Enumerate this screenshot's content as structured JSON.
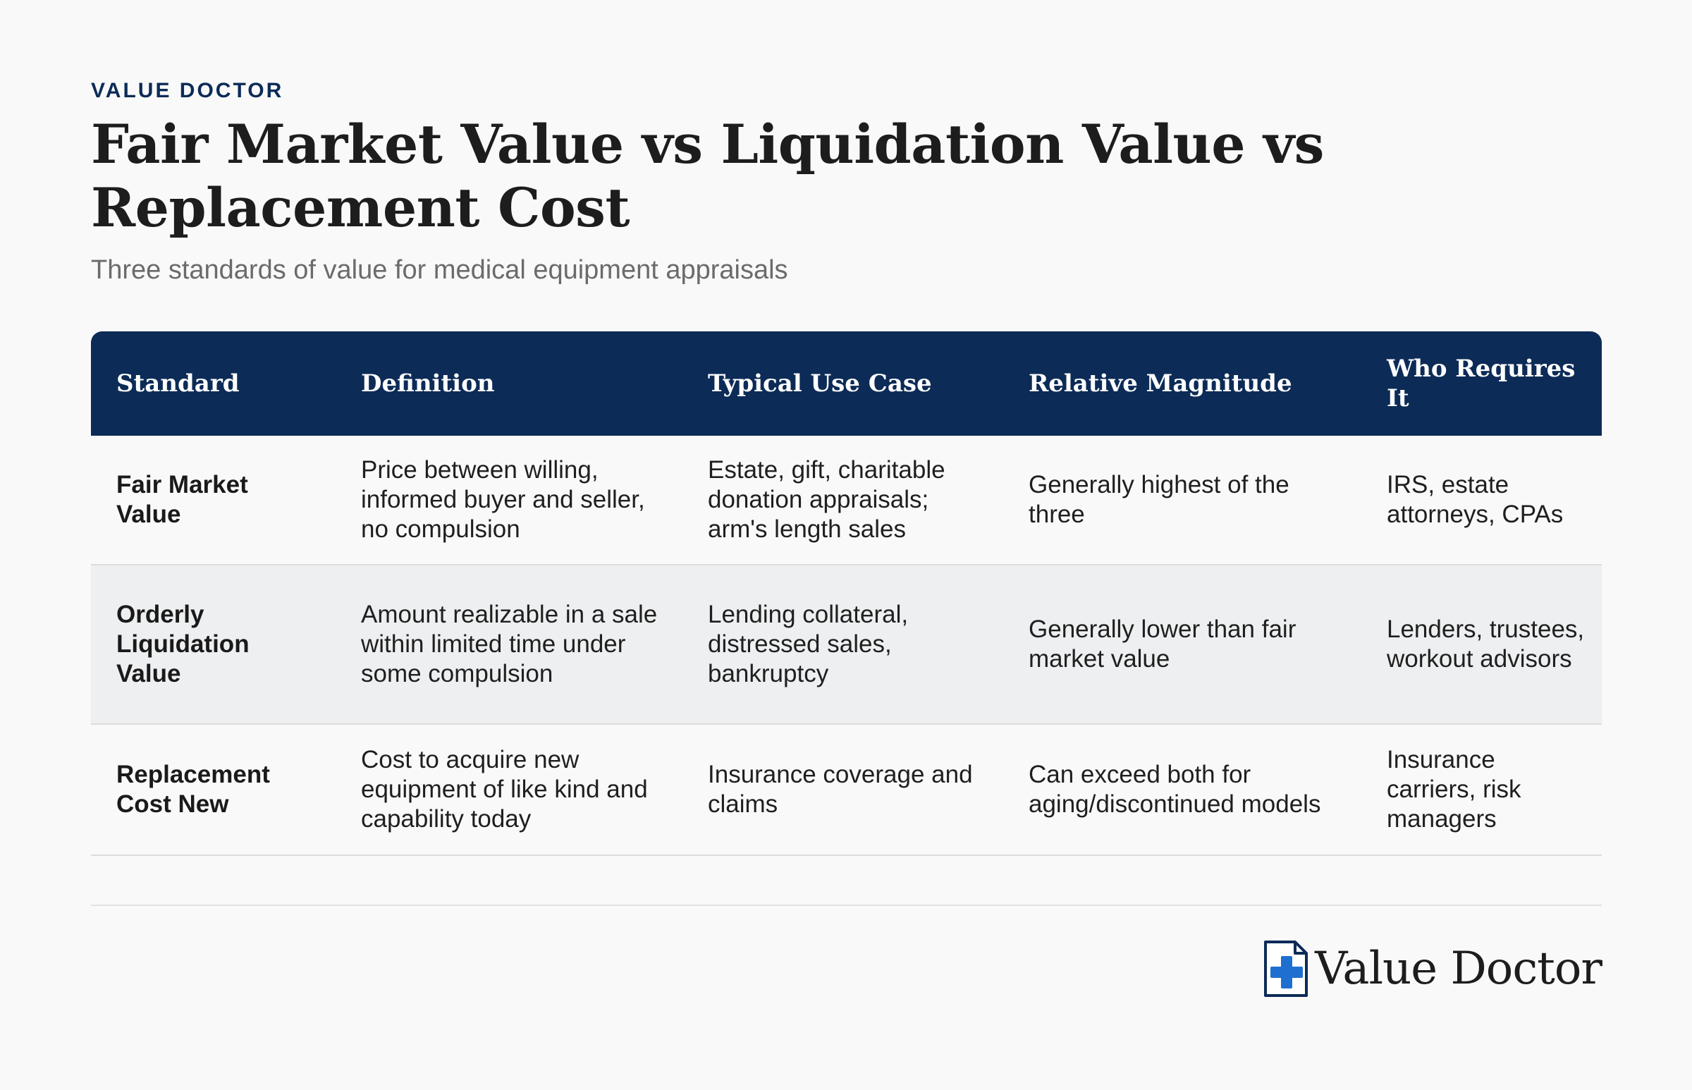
{
  "header": {
    "eyebrow": "VALUE DOCTOR",
    "title": "Fair Market Value vs Liquidation Value vs Replacement Cost",
    "subtitle": "Three standards of value for medical equipment appraisals"
  },
  "table": {
    "columns": [
      "Standard",
      "Definition",
      "Typical Use Case",
      "Relative Magnitude",
      "Who Requires It"
    ],
    "rows": [
      {
        "standard": "Fair Market Value",
        "definition": "Price between willing, informed buyer and seller, no compulsion",
        "use_case": "Estate, gift, charitable donation appraisals; arm's length sales",
        "magnitude": "Generally highest of the three",
        "who": "IRS, estate attorneys, CPAs"
      },
      {
        "standard": "Orderly Liquidation Value",
        "definition": "Amount realizable in a sale within limited time under some compulsion",
        "use_case": "Lending collateral, distressed sales, bankruptcy",
        "magnitude": "Generally lower than fair market value",
        "who": "Lenders, trustees, workout advisors"
      },
      {
        "standard": "Replacement Cost New",
        "definition": "Cost to acquire new equipment of like kind and capability today",
        "use_case": "Insurance coverage and claims",
        "magnitude": "Can exceed both for aging/discontinued models",
        "who": "Insurance carriers, risk managers"
      }
    ]
  },
  "footer": {
    "brand_name": "Value Doctor",
    "brand_icon": "medical-cross-document-icon"
  },
  "colors": {
    "brand_navy": "#0c2b57",
    "icon_blue": "#1f6fd1",
    "row_alt": "#eeeff0",
    "background": "#f9f9f9"
  }
}
